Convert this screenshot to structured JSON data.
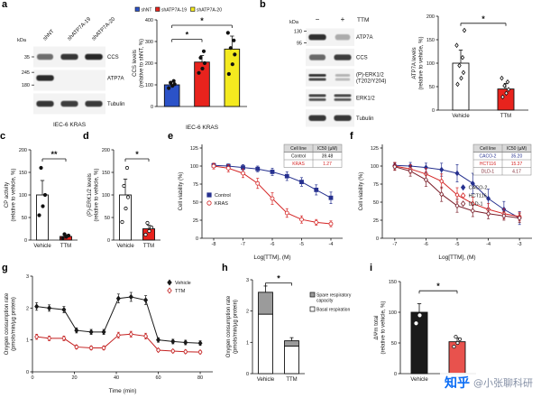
{
  "panel_labels": {
    "a": "a",
    "b": "b",
    "c": "c",
    "d": "d",
    "e": "e",
    "f": "f",
    "g": "g",
    "h": "h",
    "i": "i"
  },
  "watermark": {
    "brand": "知乎",
    "handle": "@小张聊科研",
    "brand_color": "#0a6cf5"
  },
  "blots": [
    {
      "id": "blot-a",
      "kda_label": "kDa",
      "lane_labels": [
        "shNT",
        "shATP7A-19",
        "shATP7A-20"
      ],
      "caption": "IEC-6 KRAS",
      "rows": [
        {
          "label": "CCS",
          "band_pos": 0.5,
          "markers": [
            {
              "text": "35",
              "pos": 0.5
            }
          ],
          "bands": [
            0.6,
            0.85,
            0.92
          ]
        },
        {
          "label": "ATP7A",
          "band_pos": 0.4,
          "markers": [
            {
              "text": "245",
              "pos": 0.16
            },
            {
              "text": "180",
              "pos": 0.7
            }
          ],
          "bands": [
            0.9,
            0.04,
            0.04
          ]
        },
        {
          "label": "Tubulin",
          "band_pos": 0.5,
          "markers": [],
          "bands": [
            0.85,
            0.82,
            0.84
          ]
        }
      ]
    },
    {
      "id": "blot-b",
      "kda_label": "kDa",
      "treatment_label": "TTM",
      "lane_labels": [
        "−",
        "+"
      ],
      "rows": [
        {
          "label": "ATP7A",
          "band_pos": 0.5,
          "markers": [
            {
              "text": "130",
              "pos": 0.2
            },
            {
              "text": "95",
              "pos": 0.78
            }
          ],
          "bands": [
            0.88,
            0.32
          ]
        },
        {
          "label": "CCS",
          "band_pos": 0.5,
          "markers": [],
          "bands": [
            0.62,
            0.82
          ]
        },
        {
          "label": "(P)-ERK1/2\n(T202/Y204)",
          "band_pos": 0.5,
          "markers": [],
          "bands": [
            0.85,
            0.28
          ],
          "doublet": true
        },
        {
          "label": "ERK1/2",
          "band_pos": 0.5,
          "markers": [],
          "bands": [
            0.8,
            0.78
          ],
          "doublet": true
        },
        {
          "label": "Tubulin",
          "band_pos": 0.5,
          "markers": [],
          "bands": [
            0.85,
            0.85
          ]
        }
      ]
    }
  ],
  "chart_data": [
    {
      "id": "chart-a",
      "type": "bar",
      "ylabel": [
        "CCS levels",
        "(relative to shNT, %)"
      ],
      "xlabel": "IEC-6 KRAS",
      "ylim": [
        0,
        400
      ],
      "yticks": [
        0,
        100,
        200,
        300,
        400
      ],
      "categories": [
        "shNT",
        "shATP7A-19",
        "shATP7A-20"
      ],
      "values": [
        100,
        205,
        265
      ],
      "errors": [
        15,
        30,
        60
      ],
      "bar_colors": [
        "#2b52c8",
        "#e8231d",
        "#f4ea1f"
      ],
      "points": [
        [
          85,
          95,
          103,
          110,
          118
        ],
        [
          155,
          175,
          200,
          225,
          255
        ],
        [
          150,
          195,
          240,
          270,
          305,
          340
        ]
      ],
      "point_marker": "circle",
      "point_open": false,
      "show_x_labels": false,
      "legend": [
        {
          "label": "shNT",
          "color": "#2b52c8"
        },
        {
          "label": "shATP7A-19",
          "color": "#e8231d"
        },
        {
          "label": "shATP7A-20",
          "color": "#f4ea1f"
        }
      ],
      "significance": [
        {
          "from": 0,
          "to": 1,
          "y": 310,
          "label": "*"
        },
        {
          "from": 0,
          "to": 2,
          "y": 375,
          "label": "*"
        }
      ]
    },
    {
      "id": "chart-b",
      "type": "bar",
      "ylabel": [
        "ATP7A levels",
        "(relative to vehicle, %)"
      ],
      "ylim": [
        0,
        200
      ],
      "yticks": [
        0,
        50,
        100,
        150,
        200
      ],
      "categories": [
        "Vehicle",
        "TTM"
      ],
      "values": [
        100,
        45
      ],
      "errors": [
        28,
        12
      ],
      "bar_colors": [
        "#ffffff",
        "#e8231d"
      ],
      "points": [
        [
          55,
          68,
          80,
          95,
          112,
          138,
          170
        ],
        [
          28,
          36,
          44,
          52,
          60,
          68
        ]
      ],
      "point_marker": "diamond",
      "point_open": true,
      "significance": [
        {
          "from": 0,
          "to": 1,
          "y": 185,
          "label": "*"
        }
      ]
    },
    {
      "id": "chart-c",
      "type": "bar",
      "ylabel": [
        "CP activity",
        "(relative to vehicle, %)"
      ],
      "ylim": [
        0,
        200
      ],
      "yticks": [
        0,
        50,
        100,
        150,
        200
      ],
      "categories": [
        "Vehicle",
        "TTM"
      ],
      "values": [
        100,
        8
      ],
      "errors": [
        32,
        4
      ],
      "bar_colors": [
        "#ffffff",
        "#e8231d"
      ],
      "points": [
        [
          55,
          75,
          100,
          160
        ],
        [
          4,
          7,
          10,
          13
        ]
      ],
      "point_marker": "circle",
      "point_open": false,
      "significance": [
        {
          "from": 0,
          "to": 1,
          "y": 180,
          "label": "**"
        }
      ]
    },
    {
      "id": "chart-d",
      "type": "bar",
      "ylabel": [
        "(P)-ERK1/2 levels",
        "(relative to vehicle, %)"
      ],
      "ylim": [
        0,
        200
      ],
      "yticks": [
        0,
        50,
        100,
        150,
        200
      ],
      "categories": [
        "Vehicle",
        "TTM"
      ],
      "values": [
        100,
        25
      ],
      "errors": [
        35,
        8
      ],
      "bar_colors": [
        "#ffffff",
        "#e8231d"
      ],
      "points": [
        [
          40,
          70,
          95,
          120,
          160
        ],
        [
          12,
          20,
          28,
          38
        ]
      ],
      "point_marker": "circle",
      "point_open": true,
      "significance": [
        {
          "from": 0,
          "to": 1,
          "y": 180,
          "label": "*"
        }
      ]
    },
    {
      "id": "chart-e",
      "type": "xy",
      "ylabel": "Cell viability (%)",
      "xlabel": "Log[TTM], (M)",
      "ylim": [
        0,
        130
      ],
      "yticks": [
        0,
        25,
        50,
        75,
        100,
        125
      ],
      "xlim": [
        -8.4,
        -3.6
      ],
      "xticks": [
        -8,
        -7,
        -6,
        -5,
        -4
      ],
      "series": [
        {
          "name": "Control",
          "color": "#26318f",
          "marker": "square",
          "open": false,
          "x": [
            -8,
            -7.5,
            -7,
            -6.5,
            -6,
            -5.5,
            -5,
            -4.5,
            -4
          ],
          "y": [
            101,
            100,
            98,
            96,
            92,
            86,
            78,
            67,
            56
          ],
          "err": [
            3,
            3,
            4,
            4,
            5,
            6,
            6,
            7,
            8
          ]
        },
        {
          "name": "KRAS",
          "color": "#d42323",
          "marker": "circle",
          "open": true,
          "x": [
            -8,
            -7.5,
            -7,
            -6.5,
            -6,
            -5.5,
            -5,
            -4.5,
            -4
          ],
          "y": [
            100,
            97,
            90,
            76,
            55,
            35,
            26,
            22,
            20
          ],
          "err": [
            4,
            5,
            6,
            7,
            8,
            6,
            5,
            4,
            4
          ]
        }
      ],
      "inset_table": {
        "headers": [
          "Cell line",
          "IC50 (µM)"
        ],
        "rows": [
          {
            "cells": [
              "Control",
              "39.48"
            ],
            "color": "#111111"
          },
          {
            "cells": [
              "KRAS",
              "1.27"
            ],
            "color": "#d42323"
          }
        ]
      }
    },
    {
      "id": "chart-f",
      "type": "xy",
      "ylabel": "Cell viability (%)",
      "xlabel": "Log[TTM], (M)",
      "ylim": [
        0,
        130
      ],
      "yticks": [
        0,
        25,
        50,
        75,
        100,
        125
      ],
      "xlim": [
        -7.4,
        -2.6
      ],
      "xticks": [
        -7,
        -6,
        -5,
        -4,
        -3
      ],
      "series": [
        {
          "name": "CACO-2",
          "color": "#26318f",
          "marker": "diamond",
          "open": false,
          "x": [
            -7,
            -6.5,
            -6,
            -5.5,
            -5,
            -4.5,
            -4,
            -3.5,
            -3
          ],
          "y": [
            101,
            100,
            98,
            95,
            90,
            76,
            55,
            40,
            28
          ],
          "err": [
            4,
            5,
            6,
            9,
            12,
            14,
            13,
            11,
            9
          ]
        },
        {
          "name": "HCT116",
          "color": "#d42323",
          "marker": "diamond",
          "open": true,
          "x": [
            -7,
            -6.5,
            -6,
            -5.5,
            -5,
            -4.5,
            -4,
            -3.5,
            -3
          ],
          "y": [
            100,
            96,
            89,
            79,
            60,
            48,
            40,
            34,
            30
          ],
          "err": [
            5,
            6,
            8,
            10,
            10,
            9,
            8,
            7,
            6
          ]
        },
        {
          "name": "DLD-1",
          "color": "#7a1f2b",
          "marker": "diamond",
          "open": true,
          "x": [
            -7,
            -6.5,
            -6,
            -5.5,
            -5,
            -4.5,
            -4,
            -3.5,
            -3
          ],
          "y": [
            99,
            93,
            81,
            61,
            45,
            38,
            34,
            31,
            28
          ],
          "err": [
            5,
            7,
            9,
            10,
            9,
            8,
            7,
            6,
            6
          ]
        }
      ],
      "inset_table": {
        "headers": [
          "Cell line",
          "IC50 (µM)"
        ],
        "rows": [
          {
            "cells": [
              "CACO-2",
              "35.20"
            ],
            "color": "#26318f"
          },
          {
            "cells": [
              "HCT116",
              "15.37"
            ],
            "color": "#d42323"
          },
          {
            "cells": [
              "DLD-1",
              "4.17"
            ],
            "color": "#7a1f2b"
          }
        ]
      }
    },
    {
      "id": "chart-g",
      "type": "xy",
      "ylabel": [
        "Oxygen consumption rate",
        "(pmols/min/µg protein)"
      ],
      "xlabel": "Time (min)",
      "ylim": [
        0,
        3
      ],
      "yticks": [
        0,
        1,
        2,
        3
      ],
      "xlim": [
        0,
        86
      ],
      "xticks": [
        0,
        20,
        40,
        60,
        80
      ],
      "series": [
        {
          "name": "Vehicle",
          "color": "#1a1a1a",
          "marker": "diamond",
          "open": false,
          "x": [
            2,
            8,
            15,
            21,
            28,
            34,
            41,
            47,
            54,
            60,
            67,
            73,
            80
          ],
          "y": [
            2.05,
            2.0,
            1.95,
            1.3,
            1.25,
            1.25,
            2.3,
            2.35,
            2.25,
            1.0,
            0.95,
            0.92,
            0.9
          ],
          "err": [
            0.12,
            0.1,
            0.1,
            0.08,
            0.08,
            0.08,
            0.14,
            0.14,
            0.14,
            0.07,
            0.07,
            0.07,
            0.07
          ]
        },
        {
          "name": "TTM",
          "color": "#c42020",
          "marker": "diamond",
          "open": true,
          "x": [
            2,
            8,
            15,
            21,
            28,
            34,
            41,
            47,
            54,
            60,
            67,
            73,
            80
          ],
          "y": [
            1.1,
            1.05,
            1.05,
            0.78,
            0.75,
            0.75,
            1.15,
            1.18,
            1.12,
            0.68,
            0.65,
            0.63,
            0.62
          ],
          "err": [
            0.08,
            0.07,
            0.07,
            0.06,
            0.06,
            0.06,
            0.09,
            0.09,
            0.09,
            0.05,
            0.05,
            0.05,
            0.05
          ]
        }
      ]
    },
    {
      "id": "chart-h",
      "type": "stacked-bar",
      "ylabel": [
        "Oxygen consumption rate",
        "(pmols/min/µg protein)"
      ],
      "ylim": [
        0,
        3
      ],
      "yticks": [
        0,
        1,
        2,
        3
      ],
      "categories": [
        "Vehicle",
        "TTM"
      ],
      "segments": [
        {
          "name": "Basal respiration",
          "color": "#ffffff",
          "values": [
            1.9,
            0.88
          ],
          "errors": [
            0.15,
            0.08
          ]
        },
        {
          "name": "Spare respiratory capacity",
          "color": "#9b9b9b",
          "values": [
            0.7,
            0.17
          ],
          "errors": [
            0.2,
            0.1
          ]
        }
      ],
      "legend": [
        {
          "label": "Spare respiratory\ncapacity",
          "color": "#9b9b9b"
        },
        {
          "label": "Basal respiration",
          "color": "#ffffff"
        }
      ],
      "significance": [
        {
          "from": 0,
          "to": 1,
          "y": 2.9,
          "label": "*"
        }
      ]
    },
    {
      "id": "chart-i",
      "type": "bar",
      "ylabel": [
        "ΔΨm total",
        "(relative to vehicle, %)"
      ],
      "ylim": [
        0,
        150
      ],
      "yticks": [
        0,
        50,
        100,
        150
      ],
      "categories": [
        "Vehicle",
        "TTM"
      ],
      "values": [
        100,
        52
      ],
      "errors": [
        14,
        6
      ],
      "bar_colors": [
        "#1a1a1a",
        "#e8524d"
      ],
      "points": [
        [
          82,
          95,
          104,
          118
        ],
        [
          44,
          50,
          56,
          60
        ]
      ],
      "point_marker": "circle",
      "point_open": true,
      "point_colors": [
        "#ffffff",
        "#111111"
      ],
      "significance": [
        {
          "from": 0,
          "to": 1,
          "y": 135,
          "label": "*"
        }
      ]
    }
  ]
}
